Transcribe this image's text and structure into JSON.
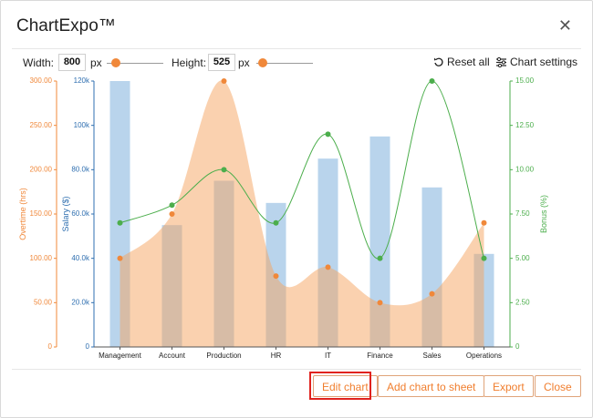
{
  "dialog": {
    "title": "ChartExpo™",
    "close_icon": "close-icon"
  },
  "toolbar": {
    "width_label": "Width:",
    "width_value": "800",
    "width_unit": "px",
    "height_label": "Height:",
    "height_value": "525",
    "height_unit": "px",
    "reset_label": "Reset all",
    "settings_label": "Chart settings"
  },
  "footer": {
    "edit_label": "Edit chart",
    "add_label": "Add chart to sheet",
    "export_label": "Export",
    "close_label": "Close"
  },
  "colors": {
    "overtime": "#f5a460",
    "salary": "#8bb8df",
    "bonus": "#4cae4c",
    "accent": "#f07e2e",
    "highlight": "#e0221e"
  },
  "chart_data": {
    "type": "bar",
    "categories": [
      "Management",
      "Account",
      "Production",
      "HR",
      "IT",
      "Finance",
      "Sales",
      "Operations"
    ],
    "series": [
      {
        "name": "Salary ($)",
        "kind": "bar",
        "axis": "left-inner",
        "values": [
          120000,
          55000,
          75000,
          65000,
          85000,
          95000,
          72000,
          42000
        ]
      },
      {
        "name": "Overtime (hrs)",
        "kind": "area",
        "axis": "left-outer",
        "values": [
          100,
          150,
          300,
          80,
          90,
          50,
          60,
          140
        ]
      },
      {
        "name": "Bonus (%)",
        "kind": "line",
        "axis": "right",
        "values": [
          7,
          8,
          10,
          7,
          12,
          5,
          15,
          5
        ]
      }
    ],
    "axes": {
      "overtime": {
        "label": "Overtime (hrs)",
        "range": [
          0,
          300
        ],
        "ticks": [
          "0",
          "50.00",
          "100.00",
          "150.00",
          "200.00",
          "250.00",
          "300.00"
        ]
      },
      "salary": {
        "label": "Salary ($)",
        "range": [
          0,
          120000
        ],
        "ticks": [
          "0",
          "20.0k",
          "40.0k",
          "60.0k",
          "80.0k",
          "100k",
          "120k"
        ]
      },
      "bonus": {
        "label": "Bonus (%)",
        "range": [
          0,
          15
        ],
        "ticks": [
          "0",
          "2.50",
          "5.00",
          "7.50",
          "10.00",
          "12.50",
          "15.00"
        ]
      }
    },
    "grid": false
  }
}
